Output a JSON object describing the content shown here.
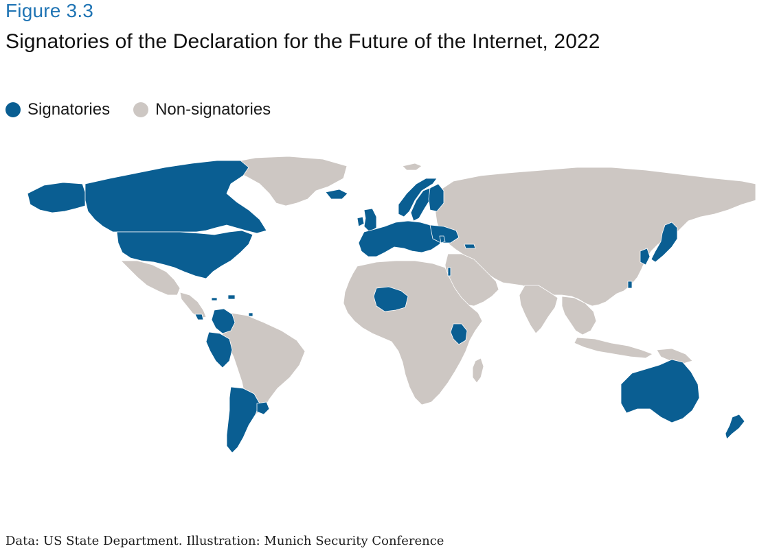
{
  "figure_label": "Figure 3.3",
  "title": "Signatories of the Declaration for the Future of the Internet, 2022",
  "legend": [
    {
      "label": "Signatories",
      "color": "#0a5e92"
    },
    {
      "label": "Non-signatories",
      "color": "#cdc7c3"
    }
  ],
  "colors": {
    "signatory": "#0a5e92",
    "non_signatory": "#cdc7c3",
    "background": "#ffffff"
  },
  "map": {
    "type": "world-choropleth",
    "regions": [
      {
        "name": "canada",
        "status": "signatory"
      },
      {
        "name": "united-states",
        "status": "signatory"
      },
      {
        "name": "alaska",
        "status": "signatory"
      },
      {
        "name": "colombia",
        "status": "signatory"
      },
      {
        "name": "peru",
        "status": "signatory"
      },
      {
        "name": "argentina",
        "status": "signatory"
      },
      {
        "name": "uruguay",
        "status": "signatory"
      },
      {
        "name": "costa-rica",
        "status": "signatory"
      },
      {
        "name": "dominican-republic",
        "status": "signatory"
      },
      {
        "name": "jamaica",
        "status": "signatory"
      },
      {
        "name": "trinidad-and-tobago",
        "status": "signatory"
      },
      {
        "name": "european-union",
        "status": "signatory"
      },
      {
        "name": "united-kingdom",
        "status": "signatory"
      },
      {
        "name": "ireland",
        "status": "signatory"
      },
      {
        "name": "iceland",
        "status": "signatory"
      },
      {
        "name": "norway",
        "status": "signatory"
      },
      {
        "name": "sweden",
        "status": "signatory"
      },
      {
        "name": "finland",
        "status": "signatory"
      },
      {
        "name": "ukraine",
        "status": "signatory"
      },
      {
        "name": "moldova",
        "status": "signatory"
      },
      {
        "name": "georgia",
        "status": "signatory"
      },
      {
        "name": "israel",
        "status": "signatory"
      },
      {
        "name": "niger",
        "status": "signatory"
      },
      {
        "name": "kenya",
        "status": "signatory"
      },
      {
        "name": "japan",
        "status": "signatory"
      },
      {
        "name": "south-korea",
        "status": "signatory"
      },
      {
        "name": "taiwan",
        "status": "signatory"
      },
      {
        "name": "australia",
        "status": "signatory"
      },
      {
        "name": "new-zealand",
        "status": "signatory"
      },
      {
        "name": "greenland",
        "status": "non-signatory"
      },
      {
        "name": "mexico",
        "status": "non-signatory"
      },
      {
        "name": "central-america",
        "status": "non-signatory"
      },
      {
        "name": "south-america-rest",
        "status": "non-signatory"
      },
      {
        "name": "africa-rest",
        "status": "non-signatory"
      },
      {
        "name": "madagascar",
        "status": "non-signatory"
      },
      {
        "name": "russia-and-asia",
        "status": "non-signatory"
      },
      {
        "name": "middle-east",
        "status": "non-signatory"
      },
      {
        "name": "india",
        "status": "non-signatory"
      },
      {
        "name": "southeast-asia",
        "status": "non-signatory"
      },
      {
        "name": "indonesia",
        "status": "non-signatory"
      },
      {
        "name": "papua-new-guinea",
        "status": "non-signatory"
      },
      {
        "name": "svalbard",
        "status": "non-signatory"
      }
    ]
  },
  "source": "Data: US State Department. Illustration: Munich Security Conference"
}
